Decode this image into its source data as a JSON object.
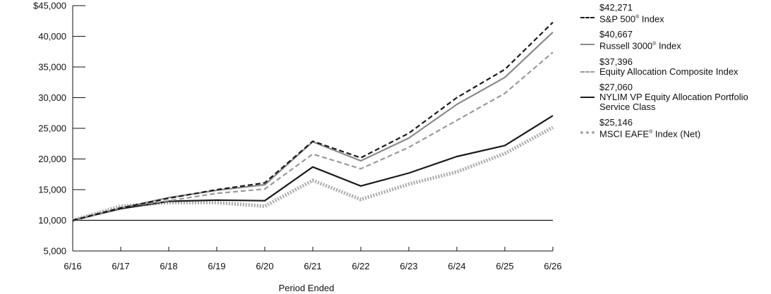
{
  "chart_data": {
    "type": "line",
    "xlabel": "Period Ended",
    "ylabel": "",
    "x": [
      "6/16",
      "6/17",
      "6/18",
      "6/19",
      "6/20",
      "6/21",
      "6/22",
      "6/23",
      "6/24",
      "6/25",
      "6/26"
    ],
    "ylim": [
      5000,
      45000
    ],
    "yticks": [
      "$45,000",
      "40,000",
      "35,000",
      "30,000",
      "25,000",
      "20,000",
      "15,000",
      "10,000",
      "5,000"
    ],
    "ytick_values": [
      45000,
      40000,
      35000,
      30000,
      25000,
      20000,
      15000,
      10000,
      5000
    ],
    "reference_line": 10000,
    "legend_position": "right",
    "series": [
      {
        "name": "S&P 500® Index",
        "name_base": "S&P 500",
        "name_mark": "®",
        "name_suffix": " Index",
        "value_label": "$42,271",
        "style": "dashed-black",
        "color": "#1a1a1a",
        "values": [
          10000,
          12000,
          13600,
          15000,
          16100,
          22900,
          20200,
          24200,
          30000,
          34600,
          42271
        ]
      },
      {
        "name": "Russell 3000®  Index",
        "name_base": "Russell 3000",
        "name_mark": "®",
        "name_suffix": "  Index",
        "value_label": "$40,667",
        "style": "solid-gray",
        "color": "#8a8a8a",
        "values": [
          10000,
          12000,
          13700,
          14900,
          15800,
          22800,
          19700,
          23400,
          28900,
          33300,
          40667
        ]
      },
      {
        "name": "Equity Allocation Composite Index",
        "name_base": "Equity Allocation Composite Index",
        "name_mark": "",
        "name_suffix": "",
        "value_label": "$37,396",
        "style": "dashed-gray",
        "color": "#9a9a9a",
        "values": [
          10000,
          12100,
          13200,
          14400,
          15100,
          20800,
          18400,
          21900,
          26300,
          30700,
          37396
        ]
      },
      {
        "name": "NYLIM VP Equity Allocation Portfolio Service Class",
        "name_base": "NYLIM VP Equity Allocation Portfolio",
        "name_line2": "Service Class",
        "name_mark": "",
        "name_suffix": "",
        "value_label": "$27,060",
        "style": "solid-black",
        "color": "#1a1a1a",
        "values": [
          10000,
          11900,
          13100,
          13300,
          13200,
          18700,
          15600,
          17700,
          20400,
          22200,
          27060
        ]
      },
      {
        "name": "MSCI EAFE® Index (Net)",
        "name_base": "MSCI EAFE",
        "name_mark": "®",
        "name_suffix": " Index (Net)",
        "value_label": "$25,146",
        "style": "dotted-gray",
        "color": "#aaaaaa",
        "values": [
          10000,
          12300,
          12900,
          12900,
          12300,
          16500,
          13400,
          15900,
          17900,
          20900,
          25146
        ]
      }
    ]
  }
}
